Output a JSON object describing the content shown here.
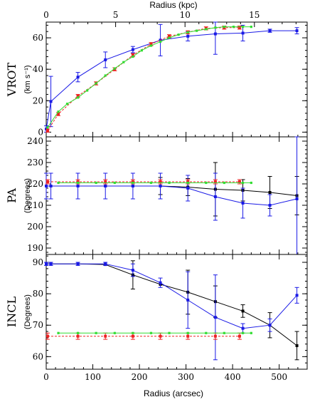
{
  "figure": {
    "top_axis": {
      "label": "Radius (kpc)",
      "range": [
        0,
        18.8
      ],
      "ticks": [
        0,
        5,
        10,
        15
      ]
    },
    "bottom_axis": {
      "label": "Radius (arcsec)",
      "range": [
        0,
        560
      ],
      "ticks": [
        0,
        100,
        200,
        300,
        400,
        500
      ]
    }
  },
  "colors": {
    "blue": "#1a1ae6",
    "red": "#ee2222",
    "green": "#33dd33",
    "black": "#000000"
  },
  "chart_data": [
    {
      "type": "line",
      "panel": "VROT",
      "ylabel_main": "VROT",
      "ylabel_unit": "(km s⁻¹)",
      "xlim": [
        0,
        560
      ],
      "ylim": [
        -3,
        70
      ],
      "yticks": [
        0,
        20,
        40,
        60
      ],
      "series": [
        {
          "color": "blue",
          "x": [
            0,
            10,
            68,
            127,
            186,
            245,
            304,
            363,
            422,
            480,
            538
          ],
          "y": [
            2,
            19.5,
            35,
            46,
            52.5,
            58.5,
            61,
            62.5,
            63,
            64.5,
            64.5
          ],
          "err": [
            2,
            16,
            3,
            5,
            2,
            10,
            3,
            13,
            5,
            1,
            2
          ]
        },
        {
          "color": "red",
          "dashed": true,
          "x": [
            3,
            26,
            68,
            107,
            147,
            186,
            225,
            264,
            304,
            343,
            382,
            415
          ],
          "y": [
            1,
            11.5,
            23,
            31,
            40,
            49,
            56,
            61,
            63.5,
            66,
            66.5,
            66.5
          ],
          "err": [
            1,
            1,
            1,
            1,
            1,
            1,
            1,
            1,
            1,
            1,
            1,
            1
          ]
        },
        {
          "color": "green",
          "x": [
            3,
            26,
            45,
            68,
            88,
            107,
            127,
            147,
            166,
            186,
            205,
            225,
            245,
            264,
            284,
            304,
            323,
            343,
            363,
            382,
            402,
            422,
            440
          ],
          "y": [
            3,
            13,
            18,
            22,
            26.5,
            31,
            36,
            40.5,
            44.5,
            48,
            52,
            55,
            57.5,
            60,
            62,
            63.5,
            64.5,
            65.5,
            66.5,
            67,
            67,
            67,
            67
          ],
          "err": []
        }
      ]
    },
    {
      "type": "line",
      "panel": "PA",
      "ylabel_main": "PA",
      "ylabel_unit": "(Degrees)",
      "xlim": [
        0,
        560
      ],
      "ylim": [
        187,
        242
      ],
      "yticks": [
        190,
        200,
        210,
        220,
        230,
        240
      ],
      "series": [
        {
          "color": "black",
          "x": [
            0,
            10,
            68,
            127,
            186,
            245,
            304,
            363,
            422,
            480,
            538
          ],
          "y": [
            219,
            219,
            219,
            219,
            219,
            219,
            218.5,
            217.5,
            217,
            216,
            214.5
          ],
          "err": [
            0,
            0,
            0,
            0,
            0,
            4,
            4,
            12.5,
            5,
            7.5,
            9
          ]
        },
        {
          "color": "blue",
          "x": [
            0,
            10,
            68,
            127,
            186,
            245,
            304,
            363,
            422,
            480,
            538
          ],
          "y": [
            219,
            219,
            219,
            219,
            219,
            219,
            218,
            214,
            211,
            210,
            213
          ],
          "err": [
            6,
            6,
            6,
            6,
            6,
            6,
            6,
            11,
            7,
            5,
            33
          ]
        },
        {
          "color": "red",
          "dashed": true,
          "x": [
            3,
            68,
            127,
            186,
            245,
            304,
            363,
            415
          ],
          "y": [
            221,
            221,
            221,
            221,
            221,
            221,
            221,
            221
          ],
          "err": [
            1,
            1,
            1,
            1,
            1,
            1,
            1,
            1
          ]
        },
        {
          "color": "green",
          "x": [
            26,
            68,
            107,
            147,
            186,
            225,
            264,
            304,
            343,
            382,
            422,
            440
          ],
          "y": [
            220.5,
            220.5,
            220.5,
            220.5,
            220.5,
            220.5,
            220.5,
            220.5,
            220.5,
            220.5,
            220.5,
            220.5
          ],
          "err": []
        }
      ]
    },
    {
      "type": "line",
      "panel": "INCL",
      "ylabel_main": "INCL",
      "ylabel_unit": "(Degrees)",
      "xlim": [
        0,
        560
      ],
      "ylim": [
        56,
        92.5
      ],
      "yticks": [
        60,
        70,
        80,
        90
      ],
      "series": [
        {
          "color": "black",
          "x": [
            0,
            10,
            68,
            127,
            186,
            245,
            304,
            363,
            422,
            480,
            538
          ],
          "y": [
            89.5,
            89.5,
            89.5,
            89.3,
            86,
            83,
            80.5,
            77.5,
            74.5,
            70,
            63.5
          ],
          "err": [
            0,
            0,
            0,
            0,
            4.5,
            0,
            7,
            5,
            2,
            4,
            4.5
          ]
        },
        {
          "color": "blue",
          "x": [
            0,
            10,
            68,
            127,
            186,
            245,
            304,
            363,
            422,
            480,
            538
          ],
          "y": [
            89.5,
            89.5,
            89.5,
            89.5,
            87.5,
            83.5,
            78,
            72.5,
            69,
            70,
            79.5
          ],
          "err": [
            0.5,
            0.5,
            0.5,
            0.5,
            2,
            1.5,
            9,
            13.5,
            1.5,
            2,
            2.5
          ]
        },
        {
          "color": "red",
          "dashed": true,
          "x": [
            3,
            68,
            127,
            186,
            245,
            304,
            363,
            415
          ],
          "y": [
            66.5,
            66.5,
            66.5,
            66.5,
            66.5,
            66.5,
            66.5,
            66.5
          ],
          "err": [
            1,
            1,
            1,
            1,
            1,
            1,
            1,
            1
          ]
        },
        {
          "color": "green",
          "x": [
            26,
            68,
            107,
            147,
            186,
            225,
            264,
            304,
            343,
            382,
            422,
            440
          ],
          "y": [
            67.5,
            67.5,
            67.5,
            67.5,
            67.5,
            67.5,
            67.5,
            67.5,
            67.5,
            67.5,
            67.5,
            67.5
          ],
          "err": []
        }
      ]
    }
  ]
}
